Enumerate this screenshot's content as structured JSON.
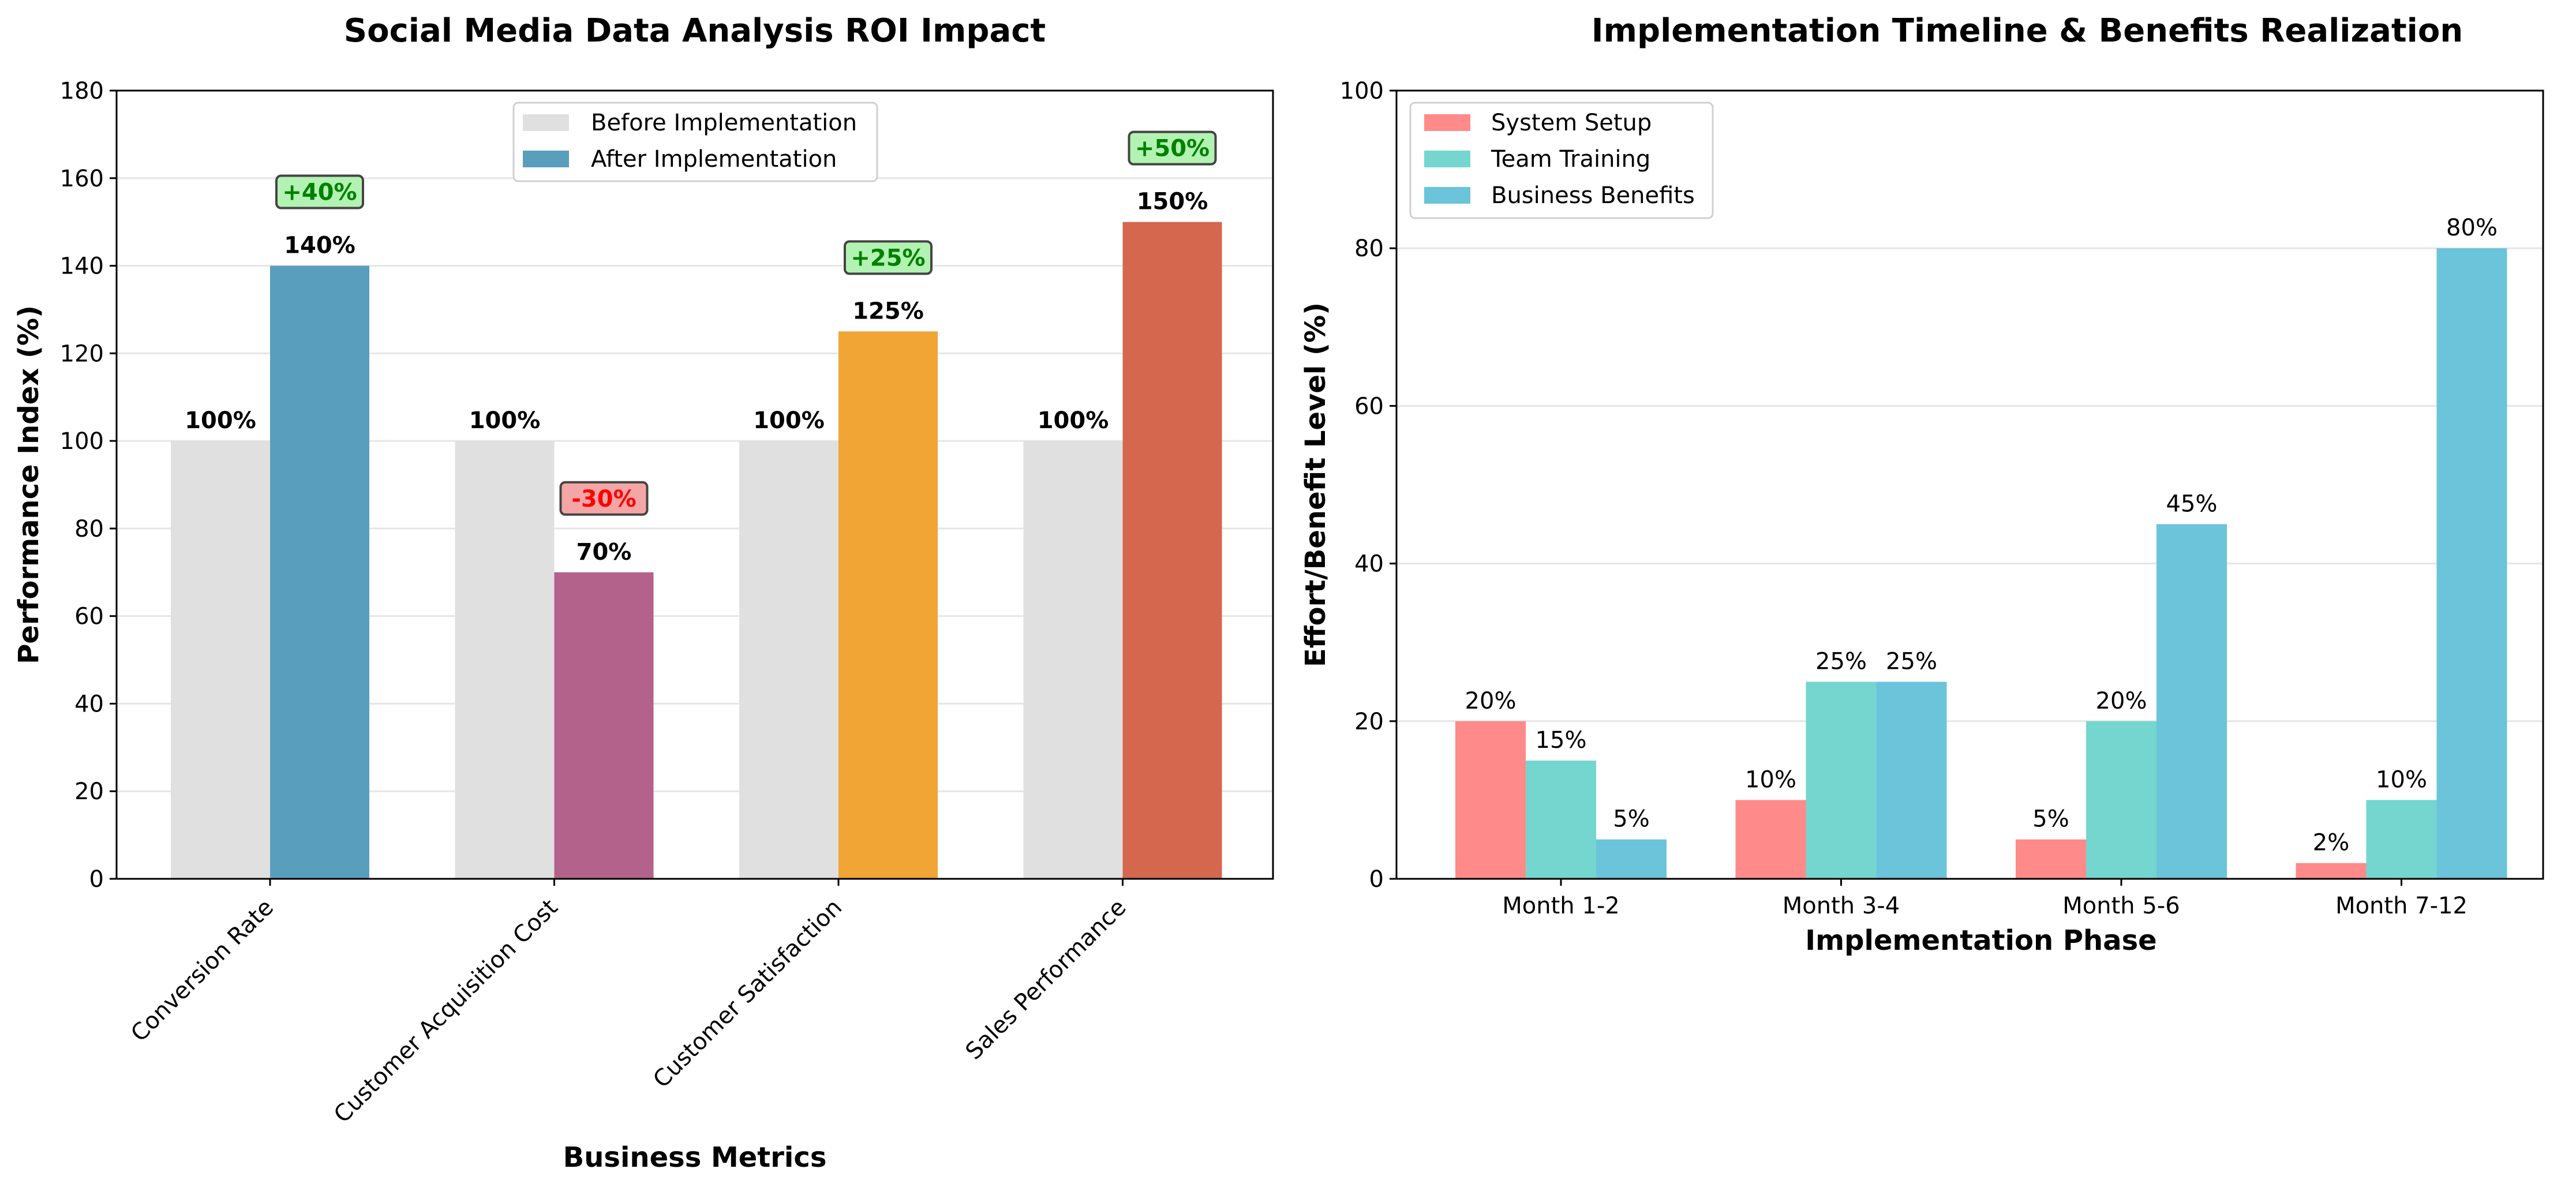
{
  "chart_data": [
    {
      "type": "bar",
      "title": "Social Media Data Analysis ROI Impact",
      "xlabel": "Business Metrics",
      "ylabel": "Performance Index (%)",
      "ylim": [
        0,
        180
      ],
      "yticks": [
        0,
        20,
        40,
        60,
        80,
        100,
        120,
        140,
        160,
        180
      ],
      "grid": true,
      "legend_position": "top-center",
      "categories": [
        "Conversion Rate",
        "Customer Acquisition Cost",
        "Customer Satisfaction",
        "Sales Performance"
      ],
      "series": [
        {
          "name": "Before Implementation",
          "values": [
            100,
            100,
            100,
            100
          ],
          "colors": [
            "#e0e0e0",
            "#e0e0e0",
            "#e0e0e0",
            "#e0e0e0"
          ],
          "labels": [
            "100%",
            "100%",
            "100%",
            "100%"
          ]
        },
        {
          "name": "After Implementation",
          "values": [
            140,
            70,
            125,
            150
          ],
          "colors": [
            "#5a9ebd",
            "#b3628b",
            "#f0a535",
            "#d4674e"
          ],
          "labels": [
            "140%",
            "70%",
            "125%",
            "150%"
          ]
        }
      ],
      "legend_colors": [
        "#e0e0e0",
        "#5a9ebd"
      ],
      "annotations": [
        {
          "text": "+40%",
          "category": 0,
          "direction": "up"
        },
        {
          "text": "-30%",
          "category": 1,
          "direction": "down"
        },
        {
          "text": "+25%",
          "category": 2,
          "direction": "up"
        },
        {
          "text": "+50%",
          "category": 3,
          "direction": "up"
        }
      ],
      "annotation_colors": {
        "up_text": "#008000",
        "up_fill": "#b2f2b2",
        "down_text": "#ff0000",
        "down_fill": "#f4a6a6"
      }
    },
    {
      "type": "bar",
      "title": "Implementation Timeline & Benefits Realization",
      "xlabel": "Implementation Phase",
      "ylabel": "Effort/Benefit Level (%)",
      "ylim": [
        0,
        100
      ],
      "yticks": [
        0,
        20,
        40,
        60,
        80,
        100
      ],
      "grid": true,
      "legend_position": "top-left",
      "categories": [
        "Month 1-2",
        "Month 3-4",
        "Month 5-6",
        "Month 7-12"
      ],
      "series": [
        {
          "name": "System Setup",
          "values": [
            20,
            10,
            5,
            2
          ],
          "color": "#ff8a8a",
          "labels": [
            "20%",
            "10%",
            "5%",
            "2%"
          ]
        },
        {
          "name": "Team Training",
          "values": [
            15,
            25,
            20,
            10
          ],
          "color": "#74d6cf",
          "labels": [
            "15%",
            "25%",
            "20%",
            "10%"
          ]
        },
        {
          "name": "Business Benefits",
          "values": [
            5,
            25,
            45,
            80
          ],
          "color": "#6bc4d9",
          "labels": [
            "5%",
            "25%",
            "45%",
            "80%"
          ]
        }
      ]
    }
  ]
}
